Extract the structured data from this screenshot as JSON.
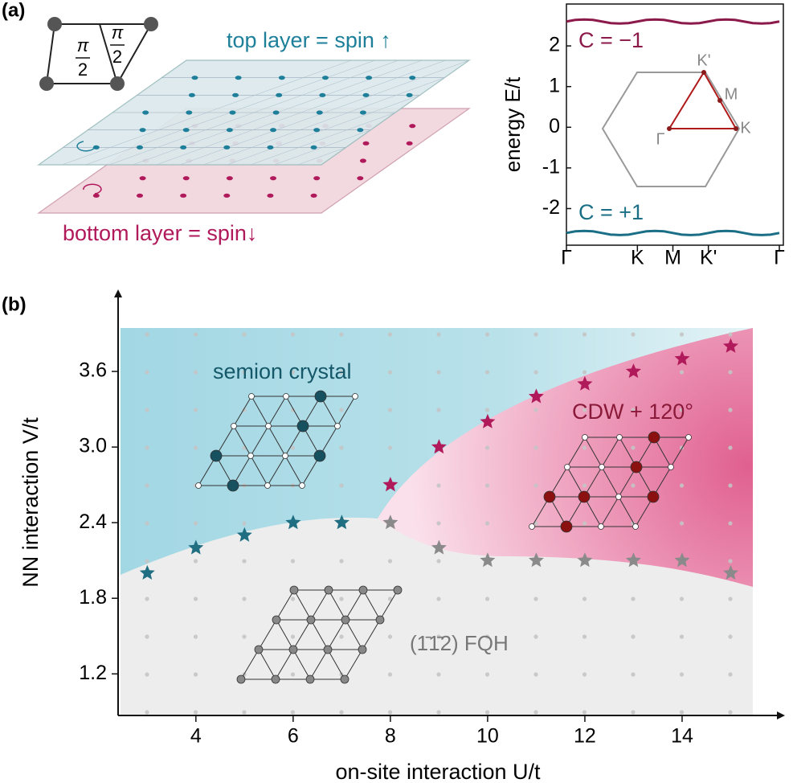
{
  "panel_a": {
    "top_layer": "top layer = spin ↑",
    "bottom_layer": "bottom layer = spin↓",
    "angles": [
      {
        "numerator": "π",
        "denominator": "2"
      },
      {
        "numerator": "π",
        "denominator": "2"
      }
    ]
  },
  "chart_data": [
    {
      "type": "line",
      "panel_label": "(a)",
      "ylabel": "energy E/t",
      "x": [
        0,
        0.125,
        0.25,
        0.375,
        0.5,
        0.625,
        0.75,
        0.875,
        1,
        1.125,
        1.25,
        1.375,
        1.5,
        1.625,
        1.75,
        1.875,
        2,
        2.125,
        2.25,
        2.375,
        2.5,
        2.625,
        2.75,
        2.875,
        3
      ],
      "xlim": [
        0,
        3
      ],
      "xticks": [
        {
          "value": 0,
          "label": "Γ"
        },
        {
          "value": 1,
          "label": "K"
        },
        {
          "value": 1.5,
          "label": "M"
        },
        {
          "value": 2,
          "label": "K'"
        },
        {
          "value": 3,
          "label": "Γ"
        }
      ],
      "ylim": [
        -2.9,
        3.03
      ],
      "yticks": [
        -2,
        -1,
        0,
        1,
        2
      ],
      "series": [
        {
          "name": "C = −1",
          "color": "#8b1a4a",
          "values": [
            2.6,
            2.64,
            2.65,
            2.64,
            2.6,
            2.56,
            2.55,
            2.56,
            2.6,
            2.64,
            2.65,
            2.64,
            2.6,
            2.56,
            2.55,
            2.56,
            2.6,
            2.64,
            2.65,
            2.64,
            2.6,
            2.56,
            2.55,
            2.56,
            2.6
          ]
        },
        {
          "name": "C = +1",
          "color": "#1a6f86",
          "values": [
            -2.6,
            -2.56,
            -2.55,
            -2.56,
            -2.6,
            -2.64,
            -2.65,
            -2.64,
            -2.6,
            -2.56,
            -2.55,
            -2.56,
            -2.6,
            -2.64,
            -2.65,
            -2.64,
            -2.6,
            -2.56,
            -2.55,
            -2.56,
            -2.6,
            -2.64,
            -2.65,
            -2.64,
            -2.6
          ]
        }
      ],
      "inset_labels": [
        "K'",
        "M",
        "K",
        "Γ"
      ]
    },
    {
      "type": "scatter",
      "panel_label": "(b)",
      "xlabel": "on-site interaction U/t",
      "ylabel": "NN interaction V/t",
      "xlim": [
        2.4,
        16
      ],
      "ylim": [
        0.87,
        4.2
      ],
      "xticks": [
        4,
        6,
        8,
        10,
        12,
        14
      ],
      "yticks": [
        1.2,
        1.8,
        2.4,
        {
          "value": 3,
          "label": "3.0"
        },
        3.6
      ],
      "series": [
        {
          "color": "#1f6e82",
          "x": [
            3,
            4,
            5,
            6,
            7
          ],
          "values": [
            2.0,
            2.2,
            2.3,
            2.4,
            2.4
          ]
        },
        {
          "color": "#b0195a",
          "x": [
            8,
            9,
            10,
            11,
            12,
            13,
            14,
            15
          ],
          "values": [
            2.7,
            3.0,
            3.2,
            3.4,
            3.5,
            3.6,
            3.7,
            3.8
          ]
        },
        {
          "color": "#8a8a8a",
          "x": [
            8,
            9,
            10,
            11,
            12,
            13,
            14,
            15
          ],
          "values": [
            2.4,
            2.2,
            2.1,
            2.1,
            2.1,
            2.1,
            2.1,
            2.0
          ]
        }
      ],
      "annotations": [
        {
          "text": "semion crystal",
          "color": "#15586a"
        },
        {
          "text": "CDW + 120°",
          "color": "#8b1a3a"
        },
        {
          "text": "(1̄1̄2) FQH",
          "color": "#777777"
        }
      ]
    }
  ]
}
